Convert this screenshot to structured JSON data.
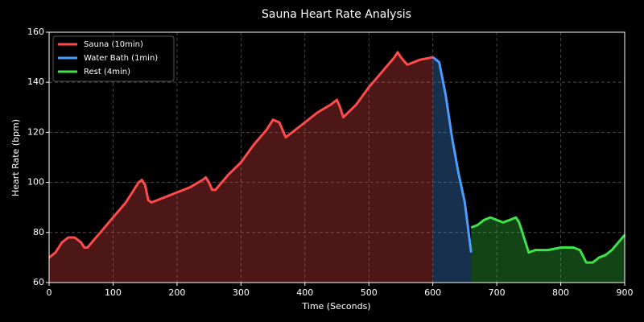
{
  "chart_data": {
    "type": "line",
    "title": "Sauna Heart Rate Analysis",
    "xlabel": "Time (Seconds)",
    "ylabel": "Heart Rate (bpm)",
    "xlim": [
      0,
      900
    ],
    "xticks": [
      0,
      100,
      200,
      300,
      400,
      500,
      600,
      700,
      800,
      900
    ],
    "ylim": [
      60,
      160
    ],
    "yticks": [
      60,
      80,
      100,
      120,
      140,
      160
    ],
    "grid": true,
    "legend": "upper left",
    "fill": true,
    "series": [
      {
        "name": "Sauna (10min)",
        "color": "#ff4b4b",
        "x": [
          0,
          10,
          20,
          30,
          40,
          50,
          55,
          60,
          70,
          80,
          90,
          100,
          110,
          120,
          130,
          140,
          145,
          150,
          155,
          160,
          170,
          180,
          200,
          220,
          240,
          245,
          250,
          255,
          260,
          270,
          280,
          300,
          320,
          340,
          350,
          360,
          370,
          380,
          400,
          420,
          440,
          450,
          455,
          460,
          480,
          500,
          520,
          540,
          545,
          550,
          560,
          580,
          600
        ],
        "values": [
          70,
          72,
          76,
          78,
          78,
          76,
          74,
          74,
          77,
          80,
          83,
          86,
          89,
          92,
          96,
          100,
          101,
          99,
          93,
          92,
          93,
          94,
          96,
          98,
          101,
          102,
          100,
          97,
          97,
          100,
          103,
          108,
          115,
          121,
          125,
          124,
          118,
          120,
          124,
          128,
          131,
          133,
          130,
          126,
          131,
          138,
          144,
          150,
          152,
          150,
          147,
          149,
          150
        ]
      },
      {
        "name": "Water Bath (1min)",
        "color": "#4a9eff",
        "x": [
          600,
          610,
          620,
          630,
          640,
          650,
          660
        ],
        "values": [
          150,
          148,
          135,
          118,
          104,
          92,
          72
        ]
      },
      {
        "name": "Rest (4min)",
        "color": "#3ee24a",
        "x": [
          660,
          670,
          680,
          690,
          700,
          710,
          720,
          730,
          735,
          740,
          750,
          760,
          780,
          800,
          820,
          830,
          840,
          850,
          860,
          870,
          880,
          890,
          900
        ],
        "values": [
          82,
          83,
          85,
          86,
          85,
          84,
          85,
          86,
          84,
          80,
          72,
          73,
          73,
          74,
          74,
          73,
          68,
          68,
          70,
          71,
          73,
          76,
          79
        ]
      }
    ]
  }
}
